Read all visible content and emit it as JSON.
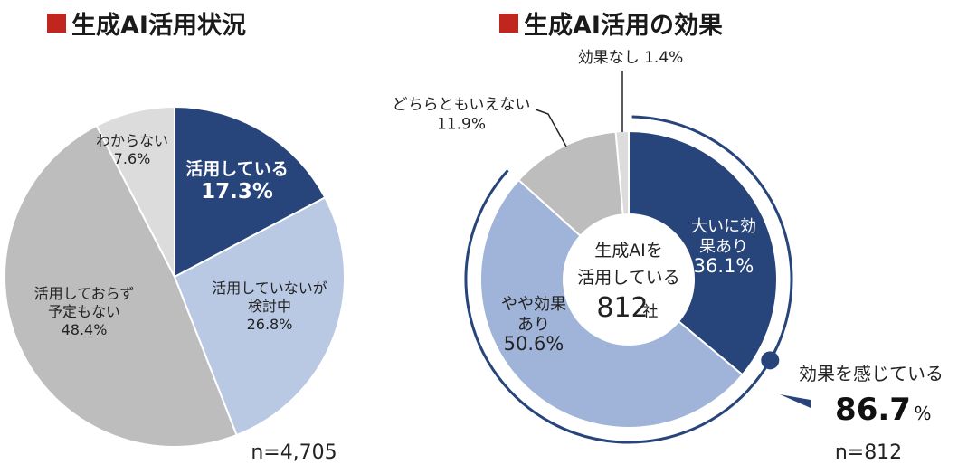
{
  "titles": {
    "left": "生成AI活用状況",
    "right": "生成AI活用の効果"
  },
  "center": {
    "line1": "生成AIを",
    "line2": "活用している",
    "count": "812",
    "unit": "社"
  },
  "summary": {
    "label": "効果を感じている",
    "value": "86.7",
    "unit": "%"
  },
  "chart_data": [
    {
      "type": "pie",
      "title": "生成AI活用状況",
      "n_label": "n=4,705",
      "slices": [
        {
          "label_lines": [
            "活用している"
          ],
          "value": 17.3,
          "value_label": "17.3%",
          "color": "#27457a"
        },
        {
          "label_lines": [
            "活用していないが",
            "検討中"
          ],
          "value": 26.8,
          "value_label": "26.8%",
          "color": "#b9c9e4"
        },
        {
          "label_lines": [
            "活用しておらず",
            "予定もない"
          ],
          "value": 48.4,
          "value_label": "48.4%",
          "color": "#bdbdbd"
        },
        {
          "label_lines": [
            "わからない"
          ],
          "value": 7.6,
          "value_label": "7.6%",
          "color": "#dcdcdc"
        }
      ]
    },
    {
      "type": "pie",
      "title": "生成AI活用の効果",
      "n_label": "n=812",
      "donut": true,
      "slices": [
        {
          "label_lines": [
            "大いに効",
            "果あり"
          ],
          "value": 36.1,
          "value_label": "36.1%",
          "color": "#27457a"
        },
        {
          "label_lines": [
            "やや効果",
            "あり"
          ],
          "value": 50.6,
          "value_label": "50.6%",
          "color": "#9fb4d8"
        },
        {
          "label_lines": [
            "どちらともいえない"
          ],
          "value": 11.9,
          "value_label": "11.9%",
          "color": "#bdbdbd"
        },
        {
          "label_lines": [
            "効果なし"
          ],
          "value": 1.4,
          "value_label": "1.4%",
          "color": "#dcdcdc"
        }
      ]
    }
  ],
  "colors": {
    "accent_square": "#c0261e",
    "ring": "#27457a"
  }
}
